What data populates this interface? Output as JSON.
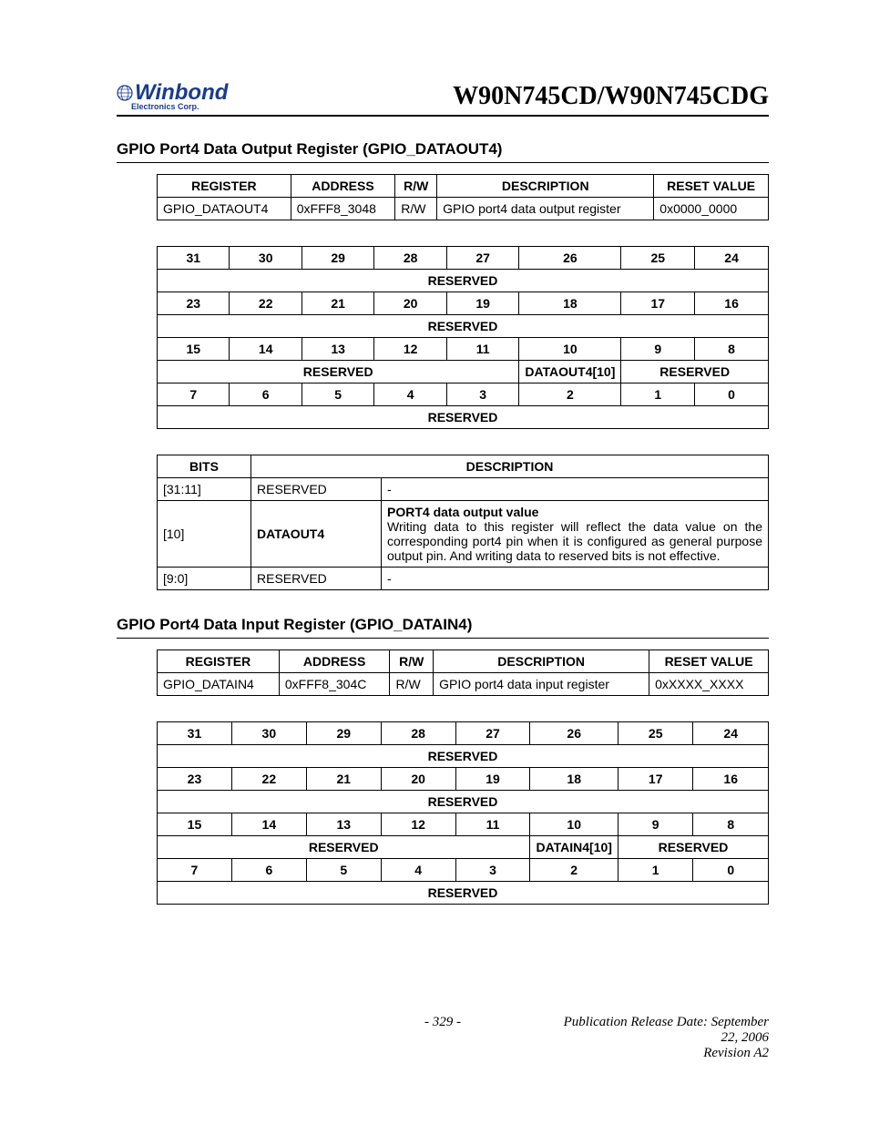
{
  "header": {
    "doc_title": "W90N745CD/W90N745CDG",
    "logo_main": "Winbond",
    "logo_sub": "Electronics Corp."
  },
  "section1": {
    "title": "GPIO Port4 Data Output Register (GPIO_DATAOUT4)",
    "summary": {
      "headers": [
        "REGISTER",
        "ADDRESS",
        "R/W",
        "DESCRIPTION",
        "RESET VALUE"
      ],
      "row": [
        "GPIO_DATAOUT4",
        "0xFFF8_3048",
        "R/W",
        "GPIO port4 data output register",
        "0x0000_0000"
      ]
    },
    "bitmap": {
      "rows": [
        {
          "bits": [
            "31",
            "30",
            "29",
            "28",
            "27",
            "26",
            "25",
            "24"
          ],
          "fields": [
            {
              "span": 8,
              "label": "RESERVED"
            }
          ]
        },
        {
          "bits": [
            "23",
            "22",
            "21",
            "20",
            "19",
            "18",
            "17",
            "16"
          ],
          "fields": [
            {
              "span": 8,
              "label": "RESERVED"
            }
          ]
        },
        {
          "bits": [
            "15",
            "14",
            "13",
            "12",
            "11",
            "10",
            "9",
            "8"
          ],
          "fields": [
            {
              "span": 5,
              "label": "RESERVED"
            },
            {
              "span": 1,
              "label": "DATAOUT4[10]"
            },
            {
              "span": 2,
              "label": "RESERVED"
            }
          ]
        },
        {
          "bits": [
            "7",
            "6",
            "5",
            "4",
            "3",
            "2",
            "1",
            "0"
          ],
          "fields": [
            {
              "span": 8,
              "label": "RESERVED"
            }
          ]
        }
      ]
    },
    "bitdesc": {
      "headers": [
        "BITS",
        "DESCRIPTION"
      ],
      "rows": [
        {
          "bits": "[31:11]",
          "name": "RESERVED",
          "desc_title": "",
          "desc_body": "-"
        },
        {
          "bits": "[10]",
          "name": "DATAOUT4",
          "desc_title": "PORT4 data output value",
          "desc_body": "Writing data to this register will reflect the data value on the corresponding port4 pin when it is configured as general purpose output pin. And writing data to reserved bits is not effective."
        },
        {
          "bits": "[9:0]",
          "name": "RESERVED",
          "desc_title": "",
          "desc_body": "-"
        }
      ]
    }
  },
  "section2": {
    "title": "GPIO Port4 Data Input Register (GPIO_DATAIN4)",
    "summary": {
      "headers": [
        "REGISTER",
        "ADDRESS",
        "R/W",
        "DESCRIPTION",
        "RESET VALUE"
      ],
      "row": [
        "GPIO_DATAIN4",
        "0xFFF8_304C",
        "R/W",
        "GPIO port4 data input register",
        "0xXXXX_XXXX"
      ]
    },
    "bitmap": {
      "rows": [
        {
          "bits": [
            "31",
            "30",
            "29",
            "28",
            "27",
            "26",
            "25",
            "24"
          ],
          "fields": [
            {
              "span": 8,
              "label": "RESERVED"
            }
          ]
        },
        {
          "bits": [
            "23",
            "22",
            "21",
            "20",
            "19",
            "18",
            "17",
            "16"
          ],
          "fields": [
            {
              "span": 8,
              "label": "RESERVED"
            }
          ]
        },
        {
          "bits": [
            "15",
            "14",
            "13",
            "12",
            "11",
            "10",
            "9",
            "8"
          ],
          "fields": [
            {
              "span": 5,
              "label": "RESERVED"
            },
            {
              "span": 1,
              "label": "DATAIN4[10]"
            },
            {
              "span": 2,
              "label": "RESERVED"
            }
          ]
        },
        {
          "bits": [
            "7",
            "6",
            "5",
            "4",
            "3",
            "2",
            "1",
            "0"
          ],
          "fields": [
            {
              "span": 8,
              "label": "RESERVED"
            }
          ]
        }
      ]
    }
  },
  "footer": {
    "pub_date": "Publication Release Date: September 22, 2006",
    "page_num": "- 329 -",
    "revision": "Revision A2"
  }
}
